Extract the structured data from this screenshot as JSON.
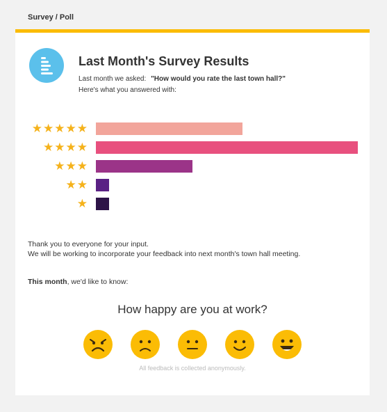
{
  "header": {
    "title": "Survey / Poll"
  },
  "results": {
    "title": "Last Month's Survey Results",
    "asked_prefix": "Last month we asked:",
    "asked_question": "\"How would you rate the last town hall?\"",
    "answered_text": "Here's what you answered with:"
  },
  "chart_data": {
    "type": "bar",
    "orientation": "horizontal",
    "categories": [
      "5 stars",
      "4 stars",
      "3 stars",
      "2 stars",
      "1 star"
    ],
    "values": [
      56,
      100,
      37,
      5,
      5
    ],
    "colors": [
      "#f2a59b",
      "#e8507e",
      "#9b3488",
      "#5a2184",
      "#2d1347"
    ],
    "xlim": [
      0,
      100
    ]
  },
  "thanks": {
    "line1": "Thank you to everyone for your input.",
    "line2": "We will be working to incorporate your feedback into next month's town hall meeting."
  },
  "this_month": {
    "bold": "This month",
    "rest": ", we'd like to know:"
  },
  "poll": {
    "question": "How happy are you at work?",
    "faces": [
      "very-unhappy",
      "unhappy",
      "neutral",
      "happy",
      "very-happy"
    ],
    "face_color": "#fbbc05",
    "footer": "All feedback is collected anonymously."
  }
}
